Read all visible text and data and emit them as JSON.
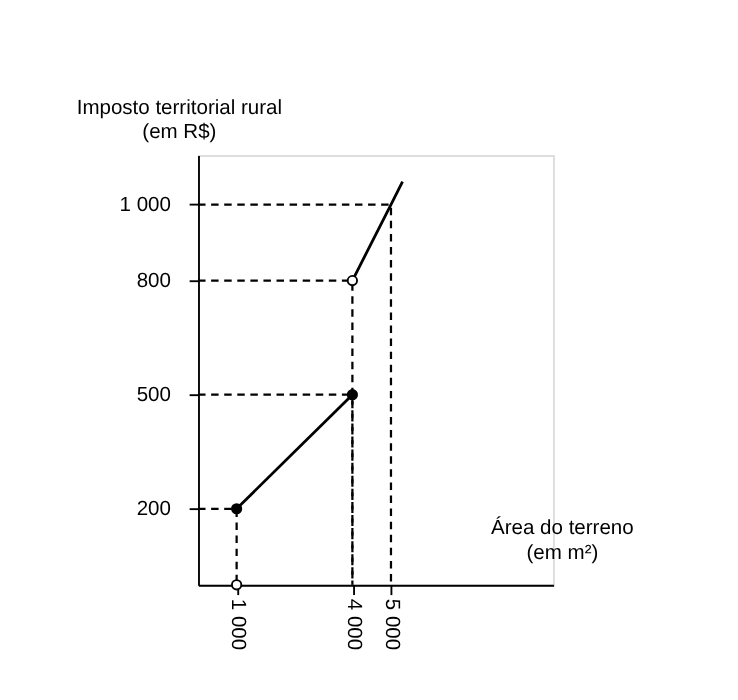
{
  "chart_data": {
    "type": "line",
    "ylabel": "Imposto territorial rural\n(em R$)",
    "xlabel": "Área do terreno\n(em m²)",
    "xlim": [
      0,
      9200
    ],
    "ylim": [
      0,
      1130
    ],
    "xticks": [
      {
        "value": 1000,
        "label": "1 000"
      },
      {
        "value": 4000,
        "label": "4 000"
      },
      {
        "value": 5000,
        "label": "5 000"
      }
    ],
    "yticks": [
      200,
      500,
      800,
      {
        "value": 1000,
        "label": "1 000"
      }
    ],
    "grid": false,
    "series": [
      {
        "color": "#000000",
        "line_style": "solid",
        "marker": "none",
        "x": [
          1000,
          4000
        ],
        "values": [
          200,
          500
        ]
      },
      {
        "color": "#000000",
        "line_style": "solid",
        "marker": "none",
        "x": [
          4000,
          5000,
          5300
        ],
        "values": [
          800,
          1000,
          1060
        ]
      },
      {
        "type": "line",
        "color": "#000000",
        "line_style": "dashed",
        "marker": "none",
        "x": [
          0,
          1000,
          1000
        ],
        "values": [
          200,
          200,
          0
        ]
      },
      {
        "type": "line",
        "color": "#000000",
        "line_style": "dashed",
        "marker": "none",
        "x": [
          0,
          4000,
          4000
        ],
        "values": [
          500,
          500,
          0
        ]
      },
      {
        "type": "line",
        "color": "#000000",
        "line_style": "dashed",
        "marker": "none",
        "x": [
          0,
          4000,
          4000
        ],
        "values": [
          800,
          800,
          0
        ]
      },
      {
        "type": "line",
        "color": "#000000",
        "line_style": "dashed",
        "marker": "none",
        "x": [
          0,
          5000,
          5000
        ],
        "values": [
          1000,
          1000,
          0
        ]
      },
      {
        "type": "scatter",
        "color": "#000000",
        "marker": "circle",
        "x": [
          1000,
          4000
        ],
        "values": [
          200,
          500
        ]
      },
      {
        "type": "scatter",
        "color": "#ffffff",
        "marker": "circle",
        "x": [
          4000,
          1000
        ],
        "values": [
          800,
          0
        ]
      }
    ]
  }
}
